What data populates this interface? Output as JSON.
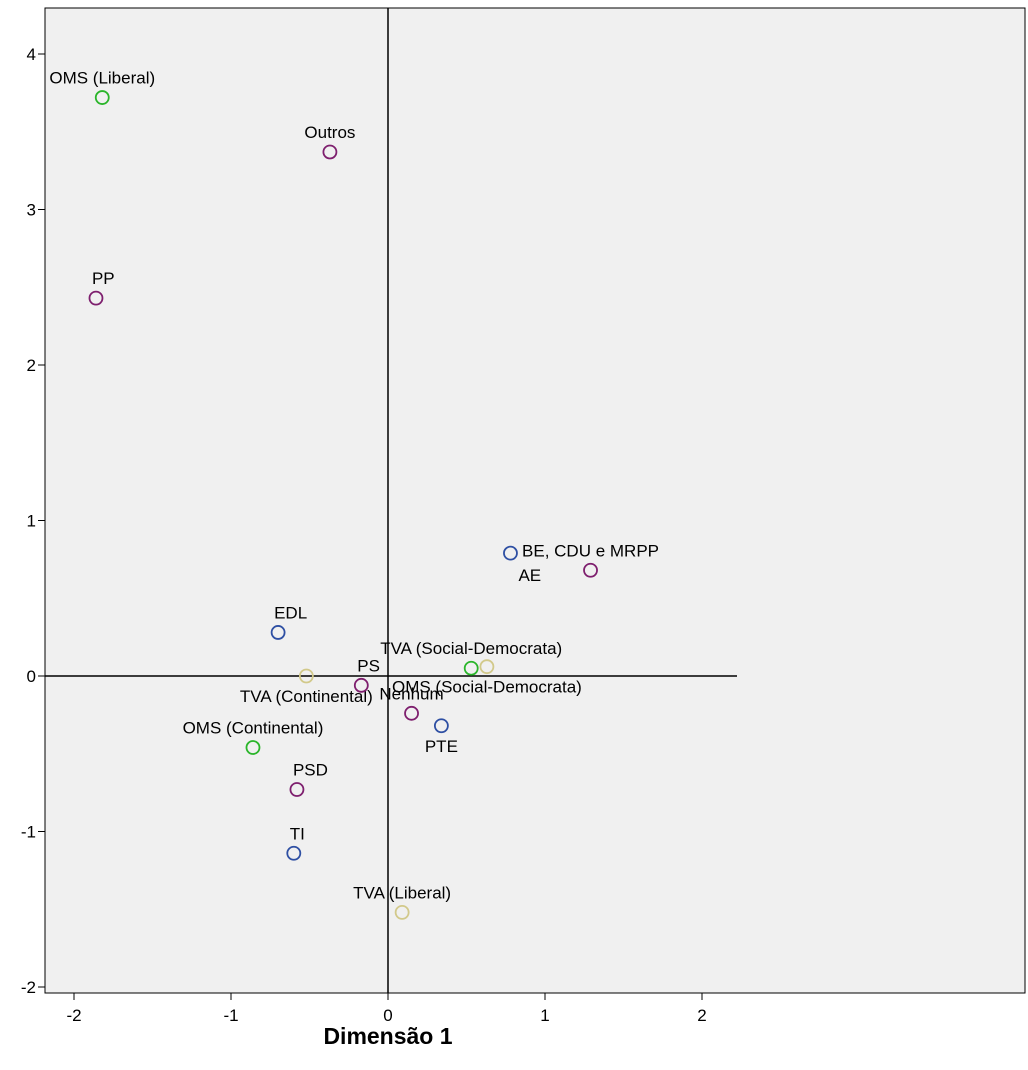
{
  "chart_data": {
    "type": "scatter",
    "title": "",
    "xlabel": "Dimensão 1",
    "ylabel": "",
    "xlim": [
      -2.2,
      4.1
    ],
    "ylim": [
      -2.05,
      4.3
    ],
    "xticks": [
      "-2",
      "-1",
      "0",
      "1",
      "2"
    ],
    "xtick_values": [
      -2,
      -1,
      0,
      1,
      2
    ],
    "yticks": [
      "-2",
      "-1",
      "0",
      "1",
      "2",
      "3",
      "4"
    ],
    "ytick_values": [
      -2,
      -1,
      0,
      1,
      2,
      3,
      4
    ],
    "grid": false,
    "legend": "none",
    "reference_lines": {
      "vertical_at_x": 0,
      "horizontal_at_y": 0
    },
    "colors": {
      "plot_background": "#f0f0f0",
      "green": "#2ab52a",
      "purple": "#7e1f6e",
      "blue": "#2e4fa3",
      "beige": "#d2c98a"
    },
    "points": [
      {
        "label": "OMS (Liberal)",
        "x": -1.82,
        "y": 3.72,
        "color": "green",
        "label_anchor": "top"
      },
      {
        "label": "Outros",
        "x": -0.37,
        "y": 3.37,
        "color": "purple",
        "label_anchor": "top"
      },
      {
        "label": "PP",
        "x": -1.86,
        "y": 2.43,
        "color": "purple",
        "label_anchor": "top-right"
      },
      {
        "label": "BE, CDU e MRPP",
        "x": 1.29,
        "y": 0.68,
        "color": "purple",
        "label_anchor": "top"
      },
      {
        "label": "AE",
        "x": 0.78,
        "y": 0.79,
        "color": "blue",
        "label_anchor": "bottom-right"
      },
      {
        "label": "EDL",
        "x": -0.7,
        "y": 0.28,
        "color": "blue",
        "label_anchor": "top-right"
      },
      {
        "label": "TVA (Social-Democrata)",
        "x": 0.53,
        "y": 0.05,
        "color": "green",
        "label_anchor": "top"
      },
      {
        "label": "OMS (Social-Democrata)",
        "x": 0.63,
        "y": 0.06,
        "color": "beige",
        "label_anchor": "bottom"
      },
      {
        "label": "TVA (Continental)",
        "x": -0.52,
        "y": 0.0,
        "color": "beige",
        "label_anchor": "bottom"
      },
      {
        "label": "PS",
        "x": -0.17,
        "y": -0.06,
        "color": "purple",
        "label_anchor": "top-right"
      },
      {
        "label": "Nenhum",
        "x": 0.15,
        "y": -0.24,
        "color": "purple",
        "label_anchor": "top"
      },
      {
        "label": "PTE",
        "x": 0.34,
        "y": -0.32,
        "color": "blue",
        "label_anchor": "bottom"
      },
      {
        "label": "OMS (Continental)",
        "x": -0.86,
        "y": -0.46,
        "color": "green",
        "label_anchor": "top"
      },
      {
        "label": "PSD",
        "x": -0.58,
        "y": -0.73,
        "color": "purple",
        "label_anchor": "top-right"
      },
      {
        "label": "TI",
        "x": -0.6,
        "y": -1.14,
        "color": "blue",
        "label_anchor": "top-right"
      },
      {
        "label": "TVA (Liberal)",
        "x": 0.09,
        "y": -1.52,
        "color": "beige",
        "label_anchor": "top"
      }
    ]
  }
}
